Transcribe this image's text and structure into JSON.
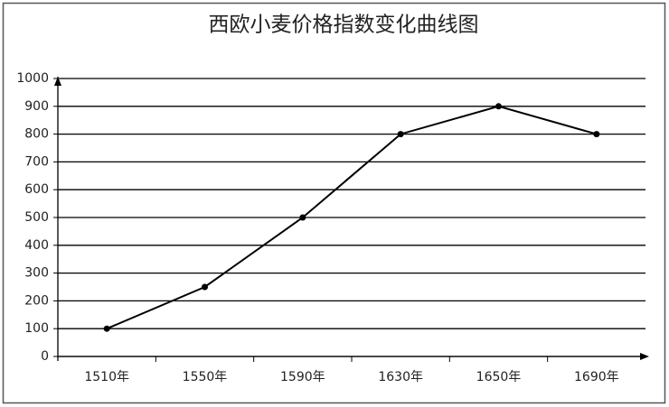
{
  "chart_data": {
    "type": "line",
    "title": "西欧小麦价格指数变化曲线图",
    "categories": [
      "1510年",
      "1550年",
      "1590年",
      "1630年",
      "1650年",
      "1690年"
    ],
    "values": [
      100,
      250,
      500,
      800,
      900,
      800
    ],
    "color": "#000000",
    "ylim": [
      0,
      1000
    ],
    "yticks": [
      0,
      100,
      200,
      300,
      400,
      500,
      600,
      700,
      800,
      900,
      1000
    ],
    "grid": true
  }
}
